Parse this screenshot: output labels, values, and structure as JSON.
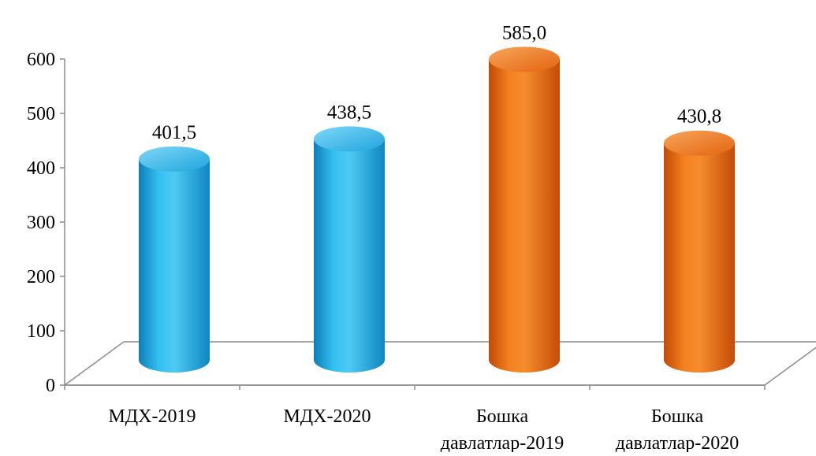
{
  "chart_data": {
    "type": "bar",
    "title": "",
    "xlabel": "",
    "ylabel": "",
    "ylim": [
      0,
      600
    ],
    "yticks": [
      "0",
      "100",
      "200",
      "300",
      "400",
      "500",
      "600"
    ],
    "categories": [
      [
        "МДХ-2019"
      ],
      [
        "МДХ-2020"
      ],
      [
        "Бошка",
        "давлатлар-2019"
      ],
      [
        "Бошка",
        "давлатлар-2020"
      ]
    ],
    "values": [
      401.5,
      438.5,
      585.0,
      430.8
    ],
    "value_labels": [
      "401,5",
      "438,5",
      "585,0",
      "430,8"
    ],
    "colors": [
      "#1aa3dc",
      "#1aa3dc",
      "#e8650c",
      "#e8650c"
    ],
    "grid": false,
    "legend": "none",
    "style": "3d-cylinder"
  }
}
